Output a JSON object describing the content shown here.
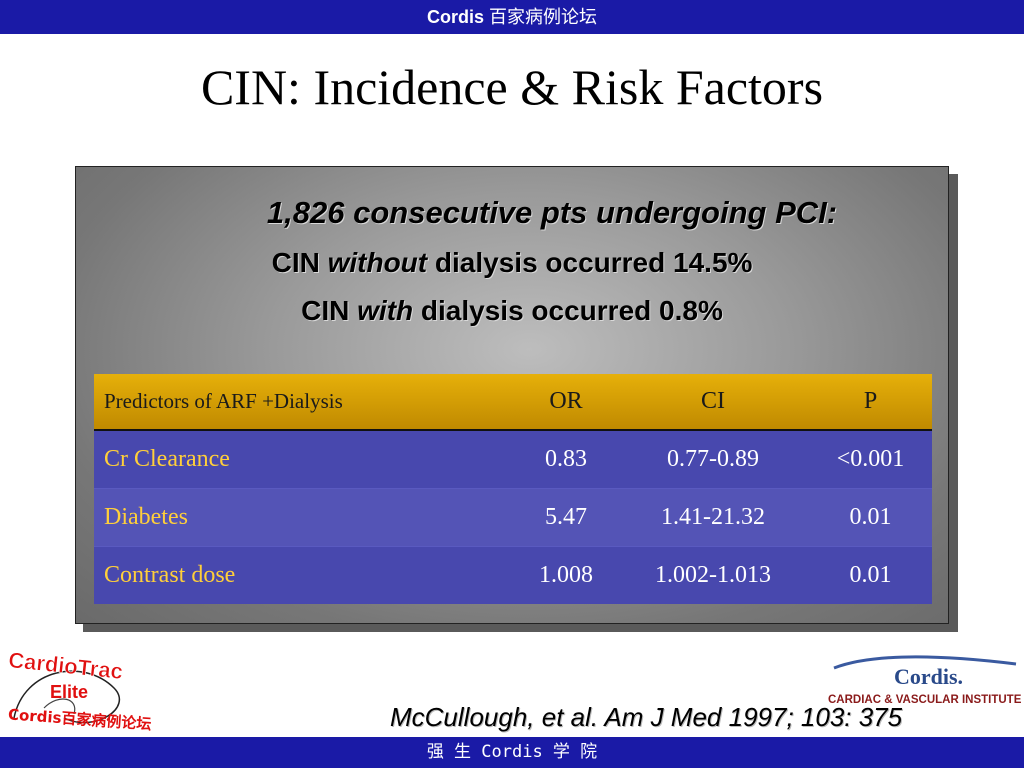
{
  "header": {
    "brand": "Cordis",
    "brand_cn": "百家病例论坛"
  },
  "slide": {
    "title": "CIN: Incidence &  Risk Factors",
    "line1": "1,826 consecutive pts undergoing PCI:",
    "line2_a": "CIN ",
    "line2_em": "without",
    "line2_b": " dialysis occurred 14.5%",
    "line3_a": "CIN ",
    "line3_em": "with",
    "line3_b": " dialysis occurred 0.8%"
  },
  "table": {
    "headers": [
      "Predictors of ARF +Dialysis",
      "OR",
      "CI",
      "P"
    ],
    "rows": [
      [
        "Cr Clearance",
        "0.83",
        "0.77-0.89",
        "<0.001"
      ],
      [
        "Diabetes",
        "5.47",
        "1.41-21.32",
        "0.01"
      ],
      [
        "Contrast dose",
        "1.008",
        "1.002-1.013",
        "0.01"
      ]
    ]
  },
  "reference": "McCullough, et al.  Am J Med 1997; 103: 375",
  "logo_left": {
    "line1": "CardioTrac",
    "line2": "Elite",
    "line3": "Cordis百家病例论坛"
  },
  "logo_right": {
    "brand": "Cordis.",
    "subtitle": "CARDIAC & VASCULAR INSTITUTE"
  },
  "footer": {
    "text": "强 生 Cordis 学 院"
  },
  "colors": {
    "bar": "#1a1aa6",
    "table_header": "#d9a206",
    "table_body": "#4848ae",
    "row_label": "#ffcf3a"
  }
}
